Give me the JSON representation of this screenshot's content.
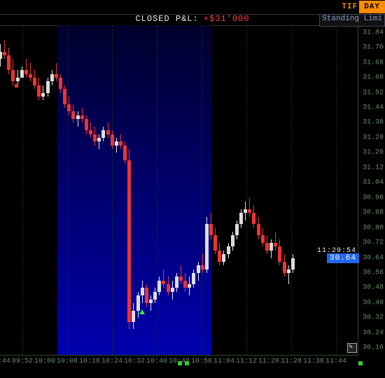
{
  "header": {
    "tif_label": "TIF",
    "day_label": "DAY",
    "pnl_label": "CLOSED P&L:",
    "pnl_value": "+$31'000",
    "standing": "Standing Limi"
  },
  "chart": {
    "type": "candlestick",
    "background": "#000000",
    "grid_color": "#1a2a1a",
    "axis_color": "#6a8a6a",
    "up_color": "#dddddd",
    "down_color": "#ee3333",
    "highlight_x": [
      0.16,
      0.59
    ],
    "timestamp_label": "11:29:54",
    "current_price": "30.64",
    "yaxis": {
      "min": 30.12,
      "max": 31.88,
      "ticks": [
        31.84,
        31.76,
        31.68,
        31.6,
        31.52,
        31.44,
        31.36,
        31.28,
        31.2,
        31.12,
        31.04,
        30.96,
        30.88,
        30.8,
        30.72,
        30.64,
        30.56,
        30.48,
        30.4,
        30.32,
        30.24,
        30.16
      ]
    },
    "xaxis": {
      "labels": [
        "09:44",
        "09:52",
        "10:00",
        "10:08",
        "10:16",
        "10:24",
        "10:32",
        "10:40",
        "10:48",
        "10:56",
        "11:04",
        "11:12",
        "11:20",
        "11:28",
        "11:36",
        "11:44"
      ],
      "positions": [
        0.0,
        0.0625,
        0.125,
        0.1875,
        0.25,
        0.3125,
        0.375,
        0.4375,
        0.5,
        0.5625,
        0.625,
        0.6875,
        0.75,
        0.8125,
        0.875,
        0.9375
      ],
      "vgrid": [
        0.0625,
        0.1875,
        0.3125,
        0.4375,
        0.5625,
        0.6875,
        0.8125,
        0.9375
      ]
    },
    "candles": [
      {
        "x": 0.0,
        "o": 31.7,
        "h": 31.78,
        "l": 31.66,
        "c": 31.74
      },
      {
        "x": 0.012,
        "o": 31.74,
        "h": 31.8,
        "l": 31.7,
        "c": 31.72
      },
      {
        "x": 0.024,
        "o": 31.72,
        "h": 31.76,
        "l": 31.62,
        "c": 31.64
      },
      {
        "x": 0.036,
        "o": 31.64,
        "h": 31.7,
        "l": 31.56,
        "c": 31.58
      },
      {
        "x": 0.048,
        "o": 31.58,
        "h": 31.64,
        "l": 31.56,
        "c": 31.6
      },
      {
        "x": 0.06,
        "o": 31.6,
        "h": 31.66,
        "l": 31.6,
        "c": 31.64
      },
      {
        "x": 0.072,
        "o": 31.64,
        "h": 31.7,
        "l": 31.6,
        "c": 31.62
      },
      {
        "x": 0.084,
        "o": 31.62,
        "h": 31.68,
        "l": 31.58,
        "c": 31.6
      },
      {
        "x": 0.096,
        "o": 31.6,
        "h": 31.64,
        "l": 31.54,
        "c": 31.56
      },
      {
        "x": 0.108,
        "o": 31.56,
        "h": 31.6,
        "l": 31.48,
        "c": 31.5
      },
      {
        "x": 0.12,
        "o": 31.5,
        "h": 31.56,
        "l": 31.48,
        "c": 31.52
      },
      {
        "x": 0.132,
        "o": 31.52,
        "h": 31.6,
        "l": 31.5,
        "c": 31.58
      },
      {
        "x": 0.144,
        "o": 31.58,
        "h": 31.64,
        "l": 31.56,
        "c": 31.62
      },
      {
        "x": 0.156,
        "o": 31.62,
        "h": 31.68,
        "l": 31.58,
        "c": 31.6
      },
      {
        "x": 0.168,
        "o": 31.6,
        "h": 31.62,
        "l": 31.52,
        "c": 31.54
      },
      {
        "x": 0.18,
        "o": 31.54,
        "h": 31.56,
        "l": 31.44,
        "c": 31.46
      },
      {
        "x": 0.192,
        "o": 31.46,
        "h": 31.5,
        "l": 31.4,
        "c": 31.42
      },
      {
        "x": 0.204,
        "o": 31.42,
        "h": 31.46,
        "l": 31.36,
        "c": 31.38
      },
      {
        "x": 0.216,
        "o": 31.38,
        "h": 31.42,
        "l": 31.34,
        "c": 31.4
      },
      {
        "x": 0.228,
        "o": 31.4,
        "h": 31.44,
        "l": 31.36,
        "c": 31.38
      },
      {
        "x": 0.24,
        "o": 31.38,
        "h": 31.4,
        "l": 31.3,
        "c": 31.32
      },
      {
        "x": 0.252,
        "o": 31.32,
        "h": 31.36,
        "l": 31.28,
        "c": 31.3
      },
      {
        "x": 0.264,
        "o": 31.3,
        "h": 31.34,
        "l": 31.24,
        "c": 31.26
      },
      {
        "x": 0.276,
        "o": 31.26,
        "h": 31.3,
        "l": 31.22,
        "c": 31.28
      },
      {
        "x": 0.288,
        "o": 31.28,
        "h": 31.34,
        "l": 31.26,
        "c": 31.32
      },
      {
        "x": 0.3,
        "o": 31.32,
        "h": 31.36,
        "l": 31.28,
        "c": 31.3
      },
      {
        "x": 0.312,
        "o": 31.3,
        "h": 31.32,
        "l": 31.22,
        "c": 31.24
      },
      {
        "x": 0.324,
        "o": 31.24,
        "h": 31.28,
        "l": 31.2,
        "c": 31.26
      },
      {
        "x": 0.336,
        "o": 31.26,
        "h": 31.3,
        "l": 31.22,
        "c": 31.24
      },
      {
        "x": 0.348,
        "o": 31.24,
        "h": 31.26,
        "l": 31.14,
        "c": 31.16
      },
      {
        "x": 0.36,
        "o": 31.16,
        "h": 31.22,
        "l": 30.26,
        "c": 30.3
      },
      {
        "x": 0.372,
        "o": 30.3,
        "h": 30.4,
        "l": 30.26,
        "c": 30.36
      },
      {
        "x": 0.384,
        "o": 30.36,
        "h": 30.46,
        "l": 30.32,
        "c": 30.44
      },
      {
        "x": 0.396,
        "o": 30.44,
        "h": 30.52,
        "l": 30.4,
        "c": 30.48
      },
      {
        "x": 0.408,
        "o": 30.48,
        "h": 30.5,
        "l": 30.38,
        "c": 30.4
      },
      {
        "x": 0.42,
        "o": 30.4,
        "h": 30.44,
        "l": 30.36,
        "c": 30.42
      },
      {
        "x": 0.432,
        "o": 30.42,
        "h": 30.48,
        "l": 30.4,
        "c": 30.46
      },
      {
        "x": 0.444,
        "o": 30.46,
        "h": 30.54,
        "l": 30.44,
        "c": 30.52
      },
      {
        "x": 0.456,
        "o": 30.52,
        "h": 30.58,
        "l": 30.48,
        "c": 30.5
      },
      {
        "x": 0.468,
        "o": 30.5,
        "h": 30.54,
        "l": 30.44,
        "c": 30.46
      },
      {
        "x": 0.48,
        "o": 30.46,
        "h": 30.52,
        "l": 30.42,
        "c": 30.48
      },
      {
        "x": 0.492,
        "o": 30.48,
        "h": 30.56,
        "l": 30.46,
        "c": 30.54
      },
      {
        "x": 0.504,
        "o": 30.54,
        "h": 30.6,
        "l": 30.5,
        "c": 30.52
      },
      {
        "x": 0.516,
        "o": 30.52,
        "h": 30.56,
        "l": 30.46,
        "c": 30.48
      },
      {
        "x": 0.528,
        "o": 30.48,
        "h": 30.54,
        "l": 30.44,
        "c": 30.5
      },
      {
        "x": 0.54,
        "o": 30.5,
        "h": 30.58,
        "l": 30.48,
        "c": 30.56
      },
      {
        "x": 0.552,
        "o": 30.56,
        "h": 30.62,
        "l": 30.52,
        "c": 30.6
      },
      {
        "x": 0.564,
        "o": 30.6,
        "h": 30.66,
        "l": 30.56,
        "c": 30.58
      },
      {
        "x": 0.576,
        "o": 30.58,
        "h": 30.86,
        "l": 30.56,
        "c": 30.82
      },
      {
        "x": 0.588,
        "o": 30.82,
        "h": 30.88,
        "l": 30.74,
        "c": 30.76
      },
      {
        "x": 0.6,
        "o": 30.76,
        "h": 30.8,
        "l": 30.66,
        "c": 30.68
      },
      {
        "x": 0.612,
        "o": 30.68,
        "h": 30.72,
        "l": 30.6,
        "c": 30.62
      },
      {
        "x": 0.624,
        "o": 30.62,
        "h": 30.68,
        "l": 30.6,
        "c": 30.66
      },
      {
        "x": 0.636,
        "o": 30.66,
        "h": 30.72,
        "l": 30.64,
        "c": 30.7
      },
      {
        "x": 0.648,
        "o": 30.7,
        "h": 30.78,
        "l": 30.68,
        "c": 30.76
      },
      {
        "x": 0.66,
        "o": 30.76,
        "h": 30.84,
        "l": 30.74,
        "c": 30.82
      },
      {
        "x": 0.672,
        "o": 30.82,
        "h": 30.9,
        "l": 30.8,
        "c": 30.88
      },
      {
        "x": 0.684,
        "o": 30.88,
        "h": 30.94,
        "l": 30.84,
        "c": 30.9
      },
      {
        "x": 0.696,
        "o": 30.9,
        "h": 30.96,
        "l": 30.86,
        "c": 30.88
      },
      {
        "x": 0.708,
        "o": 30.88,
        "h": 30.92,
        "l": 30.8,
        "c": 30.82
      },
      {
        "x": 0.72,
        "o": 30.82,
        "h": 30.86,
        "l": 30.74,
        "c": 30.76
      },
      {
        "x": 0.732,
        "o": 30.76,
        "h": 30.8,
        "l": 30.7,
        "c": 30.72
      },
      {
        "x": 0.744,
        "o": 30.72,
        "h": 30.76,
        "l": 30.66,
        "c": 30.68
      },
      {
        "x": 0.756,
        "o": 30.68,
        "h": 30.74,
        "l": 30.64,
        "c": 30.72
      },
      {
        "x": 0.768,
        "o": 30.72,
        "h": 30.78,
        "l": 30.68,
        "c": 30.7
      },
      {
        "x": 0.78,
        "o": 30.7,
        "h": 30.74,
        "l": 30.6,
        "c": 30.62
      },
      {
        "x": 0.792,
        "o": 30.62,
        "h": 30.66,
        "l": 30.54,
        "c": 30.56
      },
      {
        "x": 0.804,
        "o": 30.56,
        "h": 30.6,
        "l": 30.5,
        "c": 30.58
      },
      {
        "x": 0.816,
        "o": 30.58,
        "h": 30.66,
        "l": 30.56,
        "c": 30.64
      }
    ],
    "markers": [
      {
        "type": "up",
        "x": 0.396,
        "y": 30.38
      },
      {
        "type": "sq",
        "x": 0.048,
        "y": 31.58
      }
    ]
  }
}
